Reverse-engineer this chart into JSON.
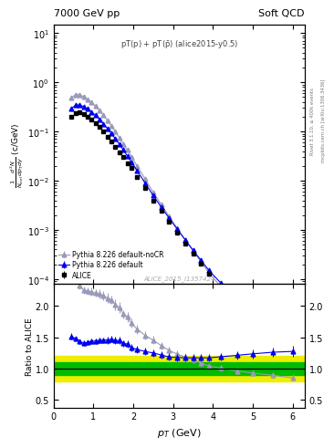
{
  "title_left": "7000 GeV pp",
  "title_right": "Soft QCD",
  "annotation": "pT(p) + pT($\\bar{p}$) (alice2015-y0.5)",
  "watermark": "ALICE_2015_I1357424",
  "right_label_top": "Rivet 3.1.10, ≥ 400k events",
  "right_label_bottom": "mcplots.cern.ch [arXiv:1306.3436]",
  "ylabel_main": "$\\frac{1}{N_{inel}}\\frac{d^2N}{dp_{T}dy}$ (c/GeV)",
  "ylabel_ratio": "Ratio to ALICE",
  "xlabel": "$p_T$ (GeV)",
  "xlim": [
    0.0,
    6.3
  ],
  "ylim_main": [
    8e-05,
    15
  ],
  "ylim_ratio": [
    0.38,
    2.35
  ],
  "ratio_yticks": [
    0.5,
    1.0,
    1.5,
    2.0
  ],
  "alice_pt": [
    0.45,
    0.55,
    0.65,
    0.75,
    0.85,
    0.95,
    1.05,
    1.15,
    1.25,
    1.35,
    1.45,
    1.55,
    1.65,
    1.75,
    1.85,
    1.95,
    2.1,
    2.3,
    2.5,
    2.7,
    2.9,
    3.1,
    3.3,
    3.5,
    3.7,
    3.9,
    4.2,
    4.6,
    5.0,
    5.5,
    6.0
  ],
  "alice_y": [
    0.195,
    0.232,
    0.242,
    0.228,
    0.202,
    0.174,
    0.148,
    0.122,
    0.099,
    0.079,
    0.062,
    0.049,
    0.038,
    0.03,
    0.023,
    0.018,
    0.0121,
    0.007,
    0.004,
    0.0024,
    0.00146,
    0.000885,
    0.000538,
    0.00033,
    0.000205,
    0.000128,
    6.95e-05,
    3.22e-05,
    1.53e-05,
    6.1e-06,
    1.68e-06
  ],
  "alice_yerr": [
    0.006,
    0.006,
    0.006,
    0.006,
    0.005,
    0.005,
    0.004,
    0.004,
    0.003,
    0.003,
    0.002,
    0.002,
    0.0015,
    0.001,
    0.001,
    0.0007,
    0.0005,
    0.0003,
    0.00017,
    0.0001,
    6e-05,
    3.7e-05,
    2.2e-05,
    1.4e-05,
    8.6e-06,
    5.4e-06,
    3.1e-06,
    1.5e-06,
    7.3e-07,
    3.1e-07,
    9.5e-08
  ],
  "pythia_default_pt": [
    0.45,
    0.55,
    0.65,
    0.75,
    0.85,
    0.95,
    1.05,
    1.15,
    1.25,
    1.35,
    1.45,
    1.55,
    1.65,
    1.75,
    1.85,
    1.95,
    2.1,
    2.3,
    2.5,
    2.7,
    2.9,
    3.1,
    3.3,
    3.5,
    3.7,
    3.9,
    4.2,
    4.6,
    5.0,
    5.5,
    6.0
  ],
  "pythia_default_y": [
    0.295,
    0.342,
    0.347,
    0.321,
    0.286,
    0.25,
    0.213,
    0.177,
    0.144,
    0.115,
    0.091,
    0.071,
    0.055,
    0.042,
    0.032,
    0.024,
    0.0158,
    0.0089,
    0.005,
    0.00292,
    0.00173,
    0.00104,
    0.000631,
    0.000387,
    0.00024,
    0.00015,
    8.26e-05,
    3.9e-05,
    1.89e-05,
    7.69e-06,
    2.14e-06
  ],
  "pythia_default_yerr": [
    0.003,
    0.003,
    0.003,
    0.003,
    0.002,
    0.002,
    0.002,
    0.002,
    0.001,
    0.001,
    0.001,
    0.0009,
    0.0007,
    0.0006,
    0.0005,
    0.0004,
    0.0003,
    0.00018,
    0.00011,
    6.5e-05,
    4e-05,
    2.5e-05,
    1.6e-05,
    1e-05,
    6.4e-06,
    4.1e-06,
    2.3e-06,
    1.1e-06,
    5.5e-07,
    2.3e-07,
    6.8e-08
  ],
  "pythia_nocr_pt": [
    0.45,
    0.55,
    0.65,
    0.75,
    0.85,
    0.95,
    1.05,
    1.15,
    1.25,
    1.35,
    1.45,
    1.55,
    1.65,
    1.75,
    1.85,
    1.95,
    2.1,
    2.3,
    2.5,
    2.7,
    2.9,
    3.1,
    3.3,
    3.5,
    3.7,
    3.9,
    4.2,
    4.6,
    5.0,
    5.5,
    6.0
  ],
  "pythia_nocr_y": [
    0.49,
    0.56,
    0.562,
    0.514,
    0.452,
    0.387,
    0.326,
    0.267,
    0.214,
    0.168,
    0.13,
    0.099,
    0.075,
    0.056,
    0.042,
    0.031,
    0.0197,
    0.0107,
    0.00581,
    0.00328,
    0.00188,
    0.00109,
    0.000637,
    0.000376,
    0.000223,
    0.000133,
    7e-05,
    3.1e-05,
    1.42e-05,
    5.45e-06,
    1.43e-06
  ],
  "pythia_nocr_yerr": [
    0.004,
    0.004,
    0.004,
    0.003,
    0.003,
    0.003,
    0.002,
    0.002,
    0.002,
    0.001,
    0.001,
    0.001,
    0.0008,
    0.0006,
    0.0005,
    0.0004,
    0.0003,
    0.00016,
    9.5e-05,
    5.5e-05,
    3.3e-05,
    2.1e-05,
    1.3e-05,
    8.2e-06,
    4.9e-06,
    3e-06,
    1.7e-06,
    7.9e-07,
    3.8e-07,
    1.5e-07,
    4.5e-08
  ],
  "band_pt": [
    0.0,
    6.3
  ],
  "band_green_lo": 0.9,
  "band_green_hi": 1.1,
  "band_yellow_lo": 0.8,
  "band_yellow_hi": 1.2,
  "color_alice": "#000000",
  "color_pythia_default": "#0000ee",
  "color_pythia_nocr": "#9999bb",
  "color_green": "#00bb00",
  "color_yellow": "#eeee00",
  "background": "#ffffff"
}
